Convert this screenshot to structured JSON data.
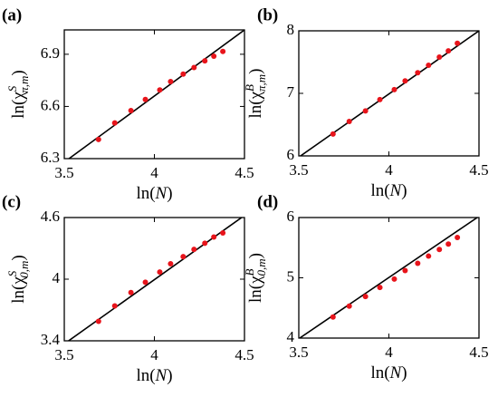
{
  "chart_data": [
    {
      "type": "scatter",
      "panel_label": "(a)",
      "xlabel": {
        "base": "ln(",
        "var": "N",
        "close": ")"
      },
      "ylabel": {
        "base": "ln(χ",
        "sup": "S",
        "sub": "π,m",
        "close": ")"
      },
      "x": [
        3.69,
        3.78,
        3.87,
        3.95,
        4.03,
        4.09,
        4.16,
        4.22,
        4.28,
        4.33,
        4.38
      ],
      "values": [
        6.41,
        6.505,
        6.576,
        6.64,
        6.695,
        6.743,
        6.786,
        6.824,
        6.862,
        6.889,
        6.916
      ],
      "color": "#e8141b",
      "fit": {
        "x": [
          3.5,
          4.5
        ],
        "values": [
          6.28,
          7.04
        ],
        "color": "#000000"
      },
      "xlim": [
        3.5,
        4.5
      ],
      "xticks": [
        3.5,
        4,
        4.5
      ],
      "ylim": [
        6.3,
        7.04
      ],
      "yticks": [
        6.3,
        6.6,
        6.9
      ]
    },
    {
      "type": "scatter",
      "panel_label": "(b)",
      "xlabel": {
        "base": "ln(",
        "var": "N",
        "close": ")"
      },
      "ylabel": {
        "base": "ln(χ",
        "sup": "B",
        "sub": "π,m",
        "close": ")"
      },
      "x": [
        3.69,
        3.78,
        3.87,
        3.95,
        4.03,
        4.09,
        4.16,
        4.22,
        4.28,
        4.33,
        4.38
      ],
      "values": [
        6.35,
        6.55,
        6.72,
        6.9,
        7.06,
        7.2,
        7.33,
        7.45,
        7.58,
        7.68,
        7.8
      ],
      "color": "#e8141b",
      "fit": {
        "x": [
          3.5,
          4.5
        ],
        "values": [
          5.98,
          8.0
        ],
        "color": "#000000"
      },
      "xlim": [
        3.5,
        4.5
      ],
      "xticks": [
        3.5,
        4,
        4.5
      ],
      "ylim": [
        6,
        8
      ],
      "yticks": [
        6,
        7,
        8
      ]
    },
    {
      "type": "scatter",
      "panel_label": "(c)",
      "xlabel": {
        "base": "ln(",
        "var": "N",
        "close": ")"
      },
      "ylabel": {
        "base": "ln(χ",
        "sup": "S",
        "sub": "0,m",
        "close": ")"
      },
      "x": [
        3.69,
        3.78,
        3.87,
        3.95,
        4.03,
        4.09,
        4.16,
        4.22,
        4.28,
        4.33,
        4.38
      ],
      "values": [
        3.59,
        3.74,
        3.87,
        3.97,
        4.07,
        4.15,
        4.22,
        4.29,
        4.35,
        4.41,
        4.45
      ],
      "color": "#e8141b",
      "fit": {
        "x": [
          3.5,
          4.5
        ],
        "values": [
          3.37,
          4.62
        ],
        "color": "#000000"
      },
      "xlim": [
        3.5,
        4.5
      ],
      "xticks": [
        3.5,
        4,
        4.5
      ],
      "ylim": [
        3.4,
        4.6
      ],
      "yticks": [
        3.4,
        4,
        4.6
      ]
    },
    {
      "type": "scatter",
      "panel_label": "(d)",
      "xlabel": {
        "base": "ln(",
        "var": "N",
        "close": ")"
      },
      "ylabel": {
        "base": "ln(χ",
        "sup": "B",
        "sub": "0,m",
        "close": ")"
      },
      "x": [
        3.69,
        3.78,
        3.87,
        3.95,
        4.03,
        4.09,
        4.16,
        4.22,
        4.28,
        4.33,
        4.38
      ],
      "values": [
        4.35,
        4.53,
        4.69,
        4.84,
        4.98,
        5.12,
        5.24,
        5.36,
        5.47,
        5.56,
        5.67
      ],
      "color": "#e8141b",
      "fit": {
        "x": [
          3.5,
          4.5
        ],
        "values": [
          3.99,
          6.02
        ],
        "color": "#000000"
      },
      "xlim": [
        3.5,
        4.5
      ],
      "xticks": [
        3.5,
        4,
        4.5
      ],
      "ylim": [
        4,
        6
      ],
      "yticks": [
        4,
        5,
        6
      ]
    }
  ]
}
